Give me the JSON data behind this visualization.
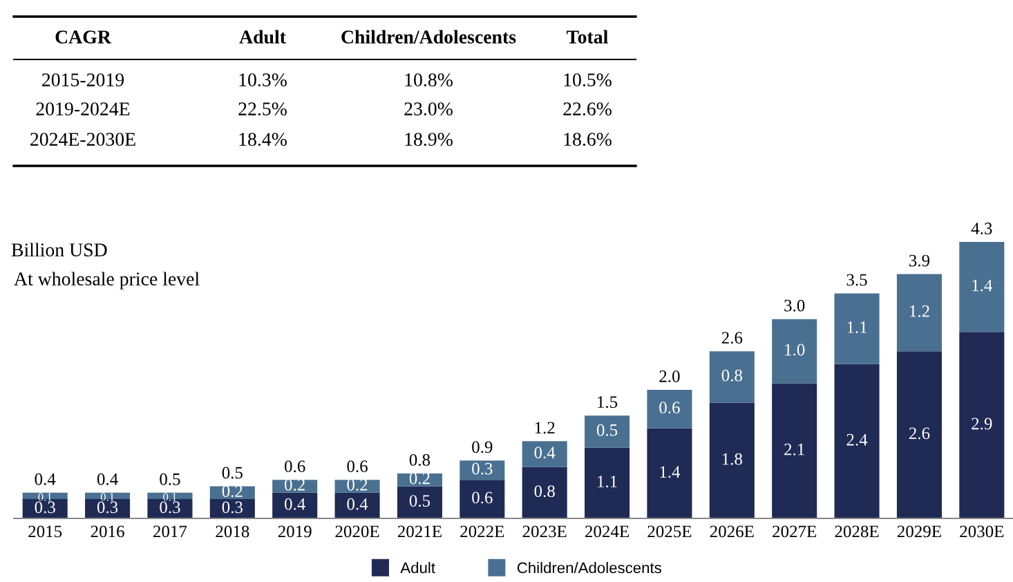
{
  "chart_data": {
    "type": "bar",
    "stacked": true,
    "subtitle": "At wholesale price level",
    "ylabel": "Billion USD",
    "categories": [
      "2015",
      "2016",
      "2017",
      "2018",
      "2019",
      "2020E",
      "2021E",
      "2022E",
      "2023E",
      "2024E",
      "2025E",
      "2026E",
      "2027E",
      "2028E",
      "2029E",
      "2030E"
    ],
    "series": [
      {
        "name": "Adult",
        "color": "#1f2a55",
        "values": [
          0.3,
          0.3,
          0.3,
          0.3,
          0.4,
          0.4,
          0.5,
          0.6,
          0.8,
          1.1,
          1.4,
          1.8,
          2.1,
          2.4,
          2.6,
          2.9
        ],
        "value_labels": [
          "0.3",
          "0.3",
          "0.3",
          "0.3",
          "0.4",
          "0.4",
          "0.5",
          "0.6",
          "0.8",
          "1.1",
          "1.4",
          "1.8",
          "2.1",
          "2.4",
          "2.6",
          "2.9"
        ]
      },
      {
        "name": "Children/Adolescents",
        "color": "#4a7091",
        "values": [
          0.1,
          0.1,
          0.1,
          0.2,
          0.2,
          0.2,
          0.2,
          0.3,
          0.4,
          0.5,
          0.6,
          0.8,
          1.0,
          1.1,
          1.2,
          1.4
        ],
        "value_labels": [
          "0.1",
          "0.1",
          "0.1",
          "0.2",
          "0.2",
          "0.2",
          "0.2",
          "0.3",
          "0.4",
          "0.5",
          "0.6",
          "0.8",
          "1.0",
          "1.1",
          "1.2",
          "1.4"
        ]
      }
    ],
    "totals": [
      "0.4",
      "0.4",
      "0.5",
      "0.5",
      "0.6",
      "0.6",
      "0.8",
      "0.9",
      "1.2",
      "1.5",
      "2.0",
      "2.6",
      "3.0",
      "3.5",
      "3.9",
      "4.3"
    ],
    "legend": "bottom",
    "grid": false,
    "tick_labels": "x",
    "annotations": [
      "CAGR",
      "Adult",
      "Children/Adolescents",
      "Total",
      "2015-2019",
      "10.3%",
      "10.8%",
      "10.5%",
      "2019-2024E",
      "22.5%",
      "23.0%",
      "22.6%",
      "2024E-2030E",
      "18.4%",
      "18.9%",
      "18.6%"
    ]
  }
}
